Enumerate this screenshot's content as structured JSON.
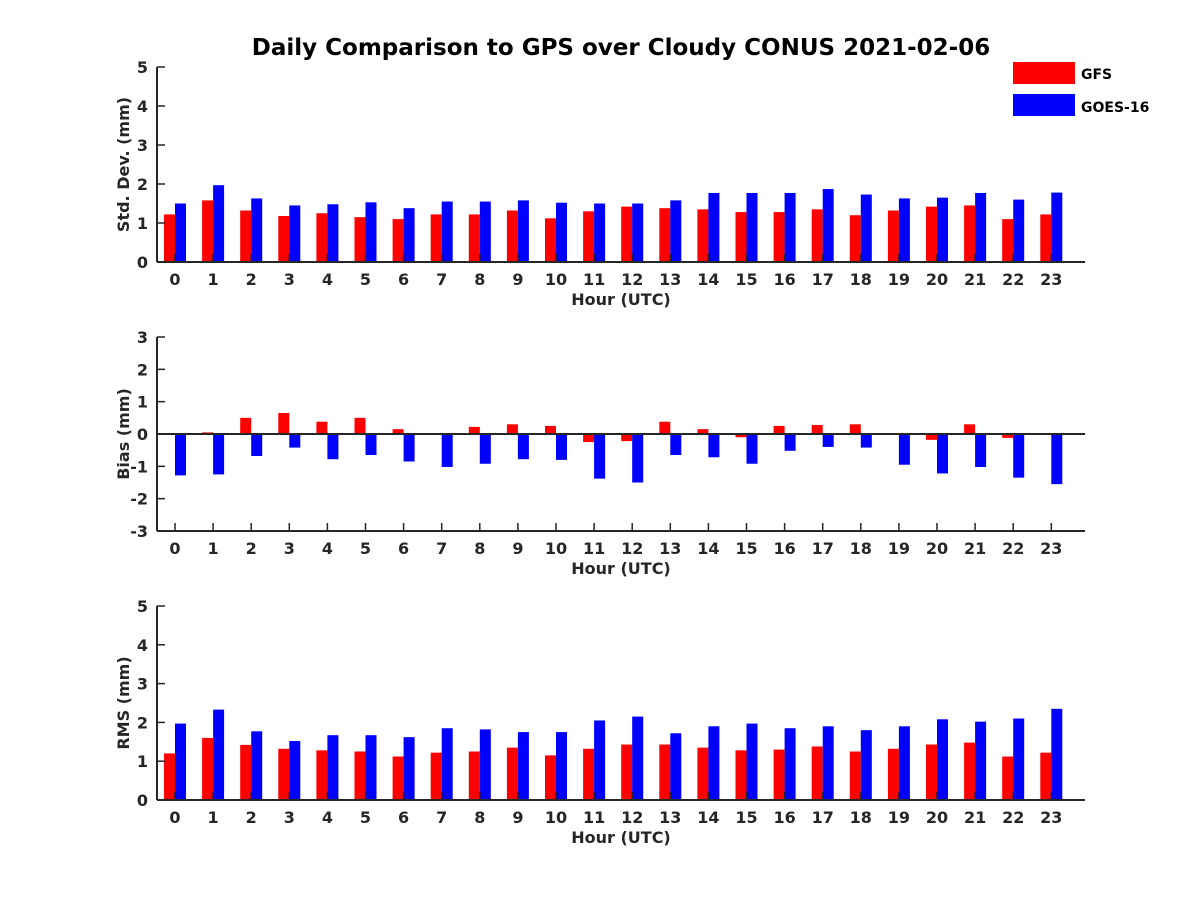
{
  "chart_data": {
    "type": "bar",
    "title": "Daily Comparison to GPS over Cloudy CONUS 2021-02-06",
    "legend": {
      "placement": "top-right",
      "entries": [
        {
          "name": "GFS",
          "color": "#ff0000"
        },
        {
          "name": "GOES-16",
          "color": "#0000ff"
        }
      ]
    },
    "categories": [
      "0",
      "1",
      "2",
      "3",
      "4",
      "5",
      "6",
      "7",
      "8",
      "9",
      "10",
      "11",
      "12",
      "13",
      "14",
      "15",
      "16",
      "17",
      "18",
      "19",
      "20",
      "21",
      "22",
      "23"
    ],
    "panels": [
      {
        "id": "stddev",
        "ylabel": "Std. Dev. (mm)",
        "xlabel": "Hour (UTC)",
        "ylim": [
          0,
          5
        ],
        "yticks": [
          "0",
          "1",
          "2",
          "3",
          "4",
          "5"
        ],
        "zero_line": false,
        "series": [
          {
            "name": "GFS",
            "color": "#ff0000",
            "values": [
              1.22,
              1.58,
              1.32,
              1.18,
              1.25,
              1.15,
              1.1,
              1.22,
              1.22,
              1.32,
              1.12,
              1.3,
              1.42,
              1.38,
              1.35,
              1.28,
              1.28,
              1.35,
              1.2,
              1.32,
              1.42,
              1.45,
              1.1,
              1.22
            ]
          },
          {
            "name": "GOES-16",
            "color": "#0000ff",
            "values": [
              1.5,
              1.97,
              1.63,
              1.45,
              1.48,
              1.53,
              1.38,
              1.55,
              1.55,
              1.58,
              1.52,
              1.5,
              1.5,
              1.58,
              1.77,
              1.77,
              1.77,
              1.87,
              1.73,
              1.63,
              1.65,
              1.77,
              1.6,
              1.78
            ]
          }
        ]
      },
      {
        "id": "bias",
        "ylabel": "Bias (mm)",
        "xlabel": "Hour (UTC)",
        "ylim": [
          -3,
          3
        ],
        "yticks": [
          "-3",
          "-2",
          "-1",
          "0",
          "1",
          "2",
          "3"
        ],
        "zero_line": true,
        "series": [
          {
            "name": "GFS",
            "color": "#ff0000",
            "values": [
              0.0,
              0.05,
              0.5,
              0.65,
              0.38,
              0.5,
              0.15,
              0.0,
              0.22,
              0.3,
              0.25,
              -0.25,
              -0.22,
              0.38,
              0.15,
              -0.1,
              0.25,
              0.28,
              0.3,
              -0.03,
              -0.18,
              0.3,
              -0.12,
              0.0
            ]
          },
          {
            "name": "GOES-16",
            "color": "#0000ff",
            "values": [
              -1.28,
              -1.25,
              -0.68,
              -0.42,
              -0.78,
              -0.65,
              -0.85,
              -1.02,
              -0.92,
              -0.78,
              -0.8,
              -1.38,
              -1.5,
              -0.65,
              -0.72,
              -0.92,
              -0.52,
              -0.4,
              -0.42,
              -0.95,
              -1.22,
              -1.02,
              -1.35,
              -1.55
            ]
          }
        ]
      },
      {
        "id": "rms",
        "ylabel": "RMS (mm)",
        "xlabel": "Hour (UTC)",
        "ylim": [
          0,
          5
        ],
        "yticks": [
          "0",
          "1",
          "2",
          "3",
          "4",
          "5"
        ],
        "zero_line": false,
        "series": [
          {
            "name": "GFS",
            "color": "#ff0000",
            "values": [
              1.2,
              1.6,
              1.42,
              1.32,
              1.28,
              1.25,
              1.12,
              1.22,
              1.25,
              1.35,
              1.15,
              1.32,
              1.43,
              1.43,
              1.35,
              1.28,
              1.3,
              1.38,
              1.25,
              1.32,
              1.43,
              1.48,
              1.12,
              1.22
            ]
          },
          {
            "name": "GOES-16",
            "color": "#0000ff",
            "values": [
              1.97,
              2.33,
              1.77,
              1.52,
              1.67,
              1.67,
              1.62,
              1.85,
              1.82,
              1.75,
              1.75,
              2.05,
              2.15,
              1.72,
              1.9,
              1.97,
              1.85,
              1.9,
              1.8,
              1.9,
              2.08,
              2.02,
              2.1,
              2.35
            ]
          }
        ]
      }
    ]
  }
}
